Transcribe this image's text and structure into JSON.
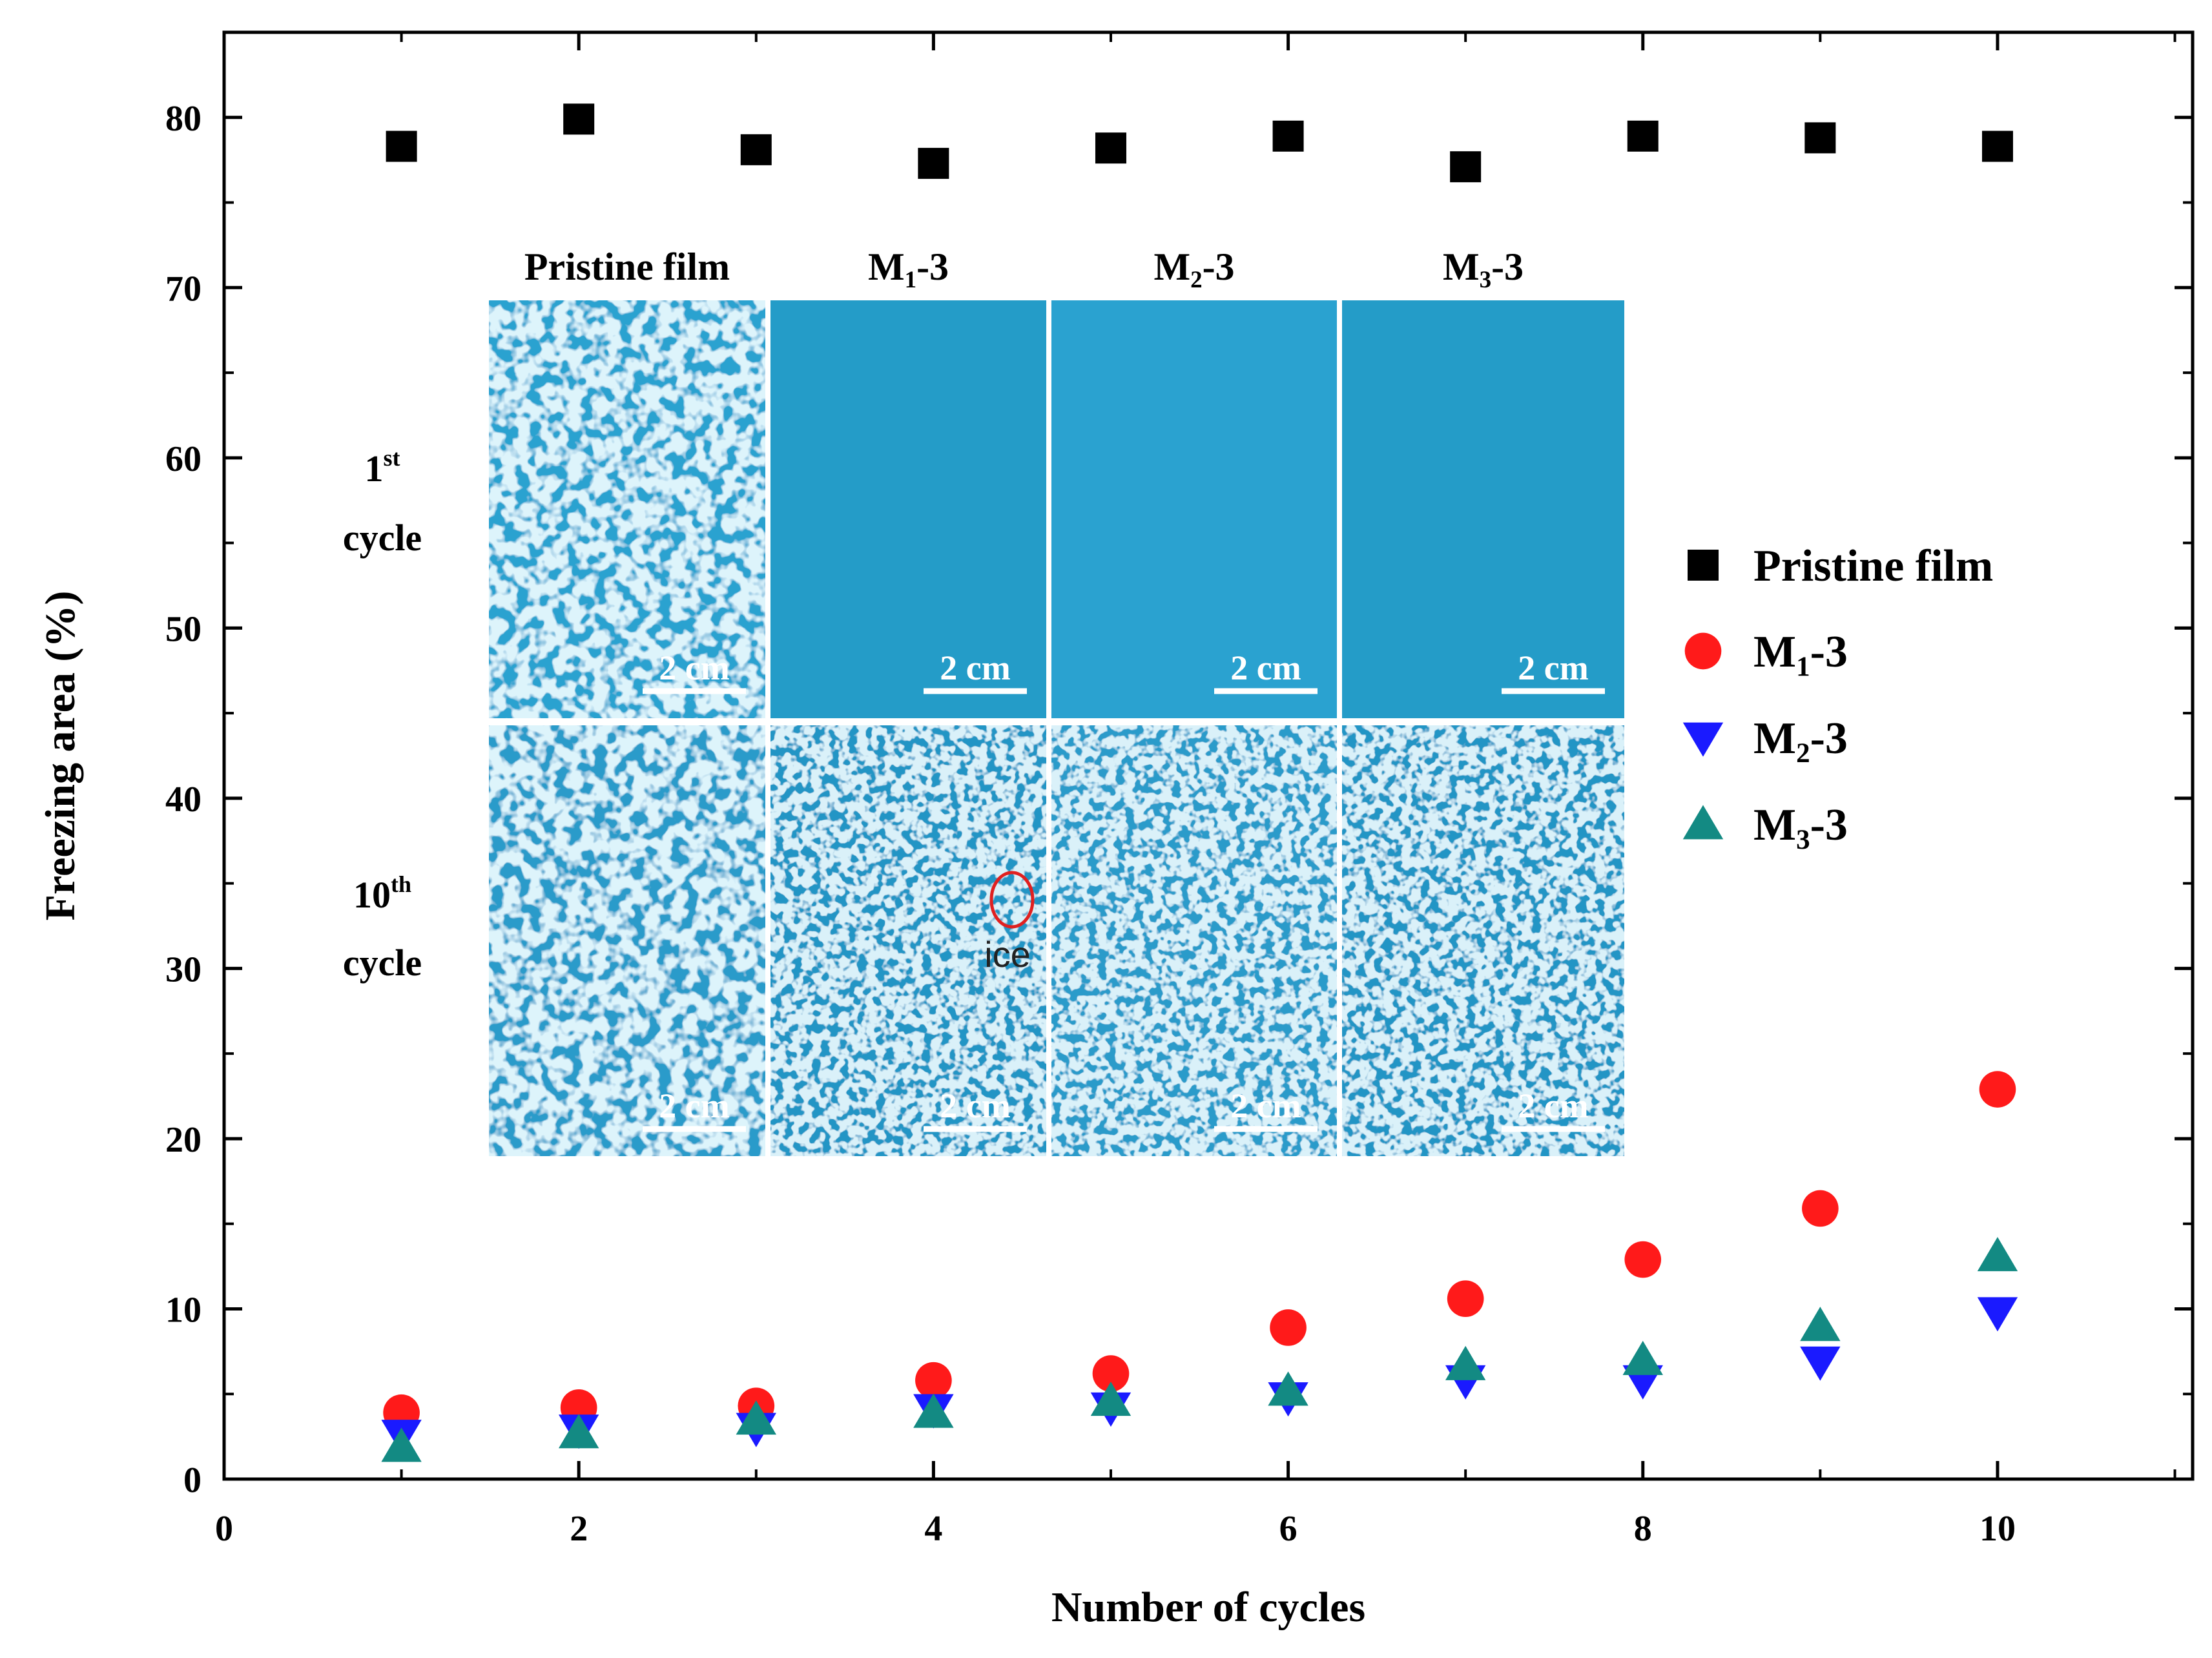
{
  "chart_data": {
    "type": "scatter",
    "xlabel": "Number of cycles",
    "ylabel": "Freezing area (%)",
    "xlim": [
      0,
      11.1
    ],
    "ylim": [
      0,
      85
    ],
    "xticks": [
      0,
      2,
      4,
      6,
      8,
      10
    ],
    "yticks": [
      0,
      10,
      20,
      30,
      40,
      50,
      60,
      70,
      80
    ],
    "legend_position": "right",
    "x": [
      1,
      2,
      3,
      4,
      5,
      6,
      7,
      8,
      9,
      10
    ],
    "series": [
      {
        "name": "Pristine film",
        "label_main": "Pristine film",
        "label_sub": "",
        "label_suffix": "",
        "marker": "square",
        "color": "#000000",
        "values": [
          78.3,
          79.9,
          78.1,
          77.3,
          78.2,
          78.9,
          77.1,
          78.9,
          78.8,
          78.3
        ]
      },
      {
        "name": "M1-3",
        "label_main": "M",
        "label_sub": "1",
        "label_suffix": "-3",
        "marker": "circle",
        "color": "#ff1a1a",
        "values": [
          3.9,
          4.2,
          4.3,
          5.8,
          6.2,
          8.9,
          10.6,
          12.9,
          15.9,
          22.9
        ]
      },
      {
        "name": "M2-3",
        "label_main": "M",
        "label_sub": "2",
        "label_suffix": "-3",
        "marker": "triangle-down",
        "color": "#1a1aff",
        "values": [
          2.6,
          2.9,
          3.0,
          4.1,
          4.2,
          4.8,
          5.8,
          5.8,
          6.9,
          9.8
        ]
      },
      {
        "name": "M3-3",
        "label_main": "M",
        "label_sub": "3",
        "label_suffix": "-3",
        "marker": "triangle-up",
        "color": "#138a83",
        "values": [
          1.9,
          2.7,
          3.5,
          3.9,
          4.6,
          5.2,
          6.7,
          7.0,
          9.0,
          13.1
        ]
      }
    ],
    "inset": {
      "columns": [
        {
          "main": "Pristine film",
          "sub": "",
          "suffix": ""
        },
        {
          "main": "M",
          "sub": "1",
          "suffix": "-3"
        },
        {
          "main": "M",
          "sub": "2",
          "suffix": "-3"
        },
        {
          "main": "M",
          "sub": "3",
          "suffix": "-3"
        }
      ],
      "rows": [
        {
          "number": "1",
          "ordinal": "st",
          "word": "cycle"
        },
        {
          "number": "10",
          "ordinal": "th",
          "word": "cycle"
        }
      ],
      "scale_bar_label": "2 cm",
      "annotation": "ice"
    }
  }
}
